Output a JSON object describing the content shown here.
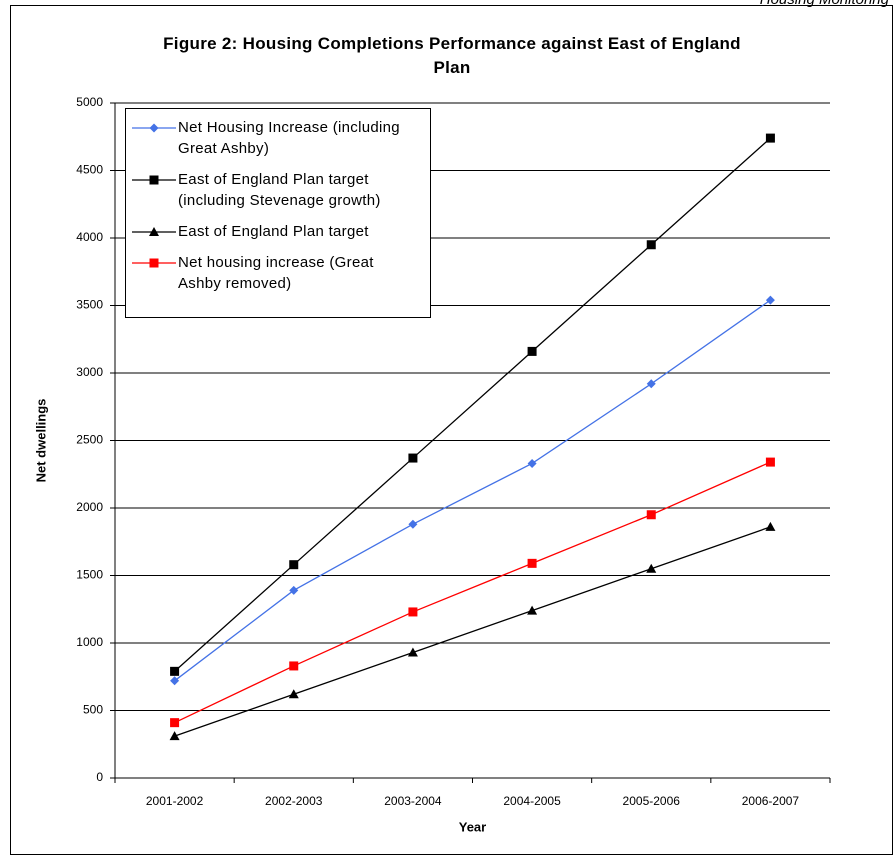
{
  "page_header": "Housing Monitoring",
  "chart_data": {
    "type": "line",
    "title": "Figure 2: Housing Completions Performance against East of England Plan",
    "x_label": "Year",
    "y_label": "Net dwellings",
    "categories": [
      "2001-2002",
      "2002-2003",
      "2003-2004",
      "2004-2005",
      "2005-2006",
      "2006-2007"
    ],
    "series": [
      {
        "name": "Net Housing Increase (including Great Ashby)",
        "color": "#4472e6",
        "marker": "diamond",
        "values": [
          720,
          1390,
          1880,
          2330,
          2920,
          3540
        ]
      },
      {
        "name": "East of England Plan target (including Stevenage growth)",
        "color": "#000000",
        "marker": "square",
        "values": [
          790,
          1580,
          2370,
          3160,
          3950,
          4740
        ]
      },
      {
        "name": "East of England Plan target",
        "color": "#000000",
        "marker": "triangle",
        "values": [
          310,
          620,
          930,
          1240,
          1550,
          1860
        ]
      },
      {
        "name": "Net housing increase (Great Ashby removed)",
        "color": "#ff0000",
        "marker": "square",
        "values": [
          410,
          830,
          1230,
          1590,
          1950,
          2340
        ]
      }
    ],
    "ylim": [
      0,
      5000
    ],
    "yticks": [
      0,
      500,
      1000,
      1500,
      2000,
      2500,
      3000,
      3500,
      4000,
      4500,
      5000
    ],
    "grid": true
  }
}
